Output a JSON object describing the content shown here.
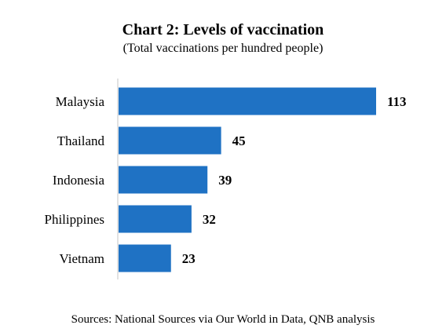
{
  "chart_data": {
    "type": "bar",
    "orientation": "horizontal",
    "title": "Chart 2: Levels of vaccination",
    "subtitle": "(Total vaccinations per hundred people)",
    "categories": [
      "Malaysia",
      "Thailand",
      "Indonesia",
      "Philippines",
      "Vietnam"
    ],
    "values": [
      113,
      45,
      39,
      32,
      23
    ],
    "value_labels": [
      "113",
      "45",
      "39",
      "32",
      "23"
    ],
    "xlim": [
      0,
      113
    ],
    "grid": false,
    "legend": "none",
    "source": "Sources: National Sources via Our World in Data, QNB analysis",
    "colors": {
      "bar": "#1f72c4",
      "axis": "#d9d9d9"
    }
  }
}
